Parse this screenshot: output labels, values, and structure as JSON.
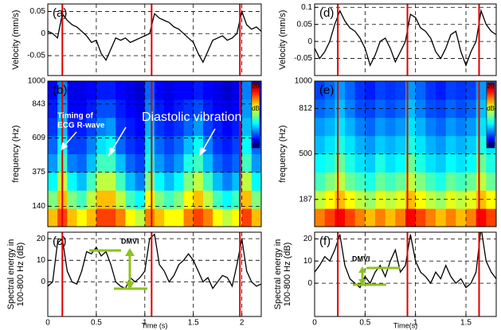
{
  "chart_data": [
    {
      "type": "line",
      "panel_label": "(a)",
      "ylabel": [
        "Velocity (mm/s)"
      ],
      "color": "#000000",
      "grid": true,
      "xlim": [
        0,
        2.2
      ],
      "xticks": [
        0,
        0.5,
        1,
        1.5,
        2
      ],
      "ylim": [
        -0.095,
        0.067
      ],
      "yticks": [
        0.05,
        0,
        -0.05
      ],
      "r_wave_x": [
        0.15,
        1.07,
        1.98
      ],
      "r_wave_color": "#e00000",
      "x": [
        0,
        0.05,
        0.1,
        0.15,
        0.2,
        0.25,
        0.3,
        0.35,
        0.4,
        0.45,
        0.5,
        0.55,
        0.6,
        0.65,
        0.7,
        0.75,
        0.8,
        0.85,
        0.9,
        0.95,
        1,
        1.05,
        1.1,
        1.15,
        1.2,
        1.25,
        1.3,
        1.35,
        1.4,
        1.45,
        1.5,
        1.55,
        1.6,
        1.65,
        1.7,
        1.75,
        1.8,
        1.85,
        1.9,
        1.95,
        2,
        2.05,
        2.1,
        2.15,
        2.2
      ],
      "values": [
        0.005,
        0.0,
        -0.01,
        0.045,
        0.03,
        0.02,
        0.015,
        0.005,
        -0.005,
        -0.02,
        -0.015,
        -0.045,
        -0.06,
        -0.035,
        -0.01,
        -0.015,
        -0.01,
        -0.02,
        -0.015,
        -0.01,
        -0.005,
        0.0,
        0.045,
        0.035,
        0.03,
        0.025,
        0.015,
        0.01,
        0.0,
        -0.01,
        -0.02,
        -0.045,
        -0.065,
        -0.04,
        -0.015,
        -0.01,
        -0.005,
        -0.015,
        -0.01,
        0.0,
        0.05,
        0.02,
        0.01,
        0.015,
        0.005
      ]
    },
    {
      "type": "heatmap",
      "panel_label": "(b)",
      "ylabel": [
        "frequency (Hz)"
      ],
      "colormap": "jet",
      "grid": true,
      "xlim": [
        0,
        2.2
      ],
      "xticks": [
        0,
        0.5,
        1,
        1.5,
        2
      ],
      "ylim": [
        0,
        1000
      ],
      "yticks": [
        140,
        375,
        609,
        843,
        1000
      ],
      "r_wave_x": [
        0.15,
        1.07,
        1.98
      ],
      "r_wave_color": "#e00000",
      "clim": [
        -60,
        20
      ],
      "colorbar": {
        "label": "dB",
        "ticks": [
          20,
          -60
        ]
      },
      "annotations": [
        "Timing of",
        "ECG R-wave",
        "Diastolic vibration"
      ],
      "x_edges": [
        0,
        0.1,
        0.2,
        0.3,
        0.4,
        0.5,
        0.6,
        0.7,
        0.8,
        0.9,
        1,
        1.1,
        1.2,
        1.3,
        1.4,
        1.5,
        1.6,
        1.7,
        1.8,
        1.9,
        2,
        2.1,
        2.2
      ],
      "y_edges": [
        0,
        125,
        250,
        375,
        500,
        625,
        750,
        875,
        1000
      ],
      "z": [
        [
          -5,
          5,
          -5,
          -10,
          -5,
          5,
          5,
          0,
          -10,
          -15,
          0,
          -5,
          -10,
          -10,
          0,
          5,
          0,
          -10,
          -15,
          -10,
          5,
          -5
        ],
        [
          -20,
          -5,
          -20,
          -25,
          -15,
          -5,
          -5,
          -15,
          -25,
          -30,
          -10,
          -20,
          -25,
          -20,
          -10,
          -5,
          -15,
          -25,
          -30,
          -25,
          -5,
          -20
        ],
        [
          -30,
          -15,
          -30,
          -35,
          -25,
          -15,
          -15,
          -25,
          -35,
          -40,
          -20,
          -30,
          -35,
          -30,
          -20,
          -15,
          -25,
          -35,
          -40,
          -35,
          -15,
          -30
        ],
        [
          -38,
          -25,
          -40,
          -42,
          -35,
          -25,
          -25,
          -35,
          -42,
          -45,
          -28,
          -38,
          -42,
          -38,
          -28,
          -25,
          -35,
          -42,
          -45,
          -42,
          -25,
          -38
        ],
        [
          -42,
          -30,
          -45,
          -45,
          -40,
          -32,
          -30,
          -42,
          -46,
          -48,
          -32,
          -42,
          -45,
          -42,
          -35,
          -30,
          -40,
          -46,
          -48,
          -45,
          -30,
          -42
        ],
        [
          -46,
          -35,
          -48,
          -48,
          -45,
          -40,
          -38,
          -46,
          -48,
          -50,
          -36,
          -46,
          -48,
          -46,
          -42,
          -38,
          -45,
          -48,
          -50,
          -48,
          -35,
          -46
        ],
        [
          -48,
          -38,
          -50,
          -50,
          -48,
          -44,
          -44,
          -48,
          -50,
          -52,
          -40,
          -48,
          -50,
          -48,
          -46,
          -44,
          -48,
          -50,
          -52,
          -50,
          -38,
          -48
        ],
        [
          -50,
          -40,
          -52,
          -52,
          -50,
          -48,
          -48,
          -50,
          -52,
          -54,
          -42,
          -50,
          -52,
          -50,
          -50,
          -48,
          -50,
          -52,
          -54,
          -52,
          -40,
          -50
        ]
      ]
    },
    {
      "type": "line",
      "panel_label": "(c)",
      "ylabel": [
        "Spectral energy in",
        "100-800 Hz (dB)"
      ],
      "xlabel": "Time (s)",
      "color": "#000000",
      "grid": true,
      "xlim": [
        0,
        2.2
      ],
      "xticks": [
        0,
        0.5,
        1,
        1.5,
        2
      ],
      "ylim": [
        -16,
        23
      ],
      "yticks": [
        0,
        10,
        20
      ],
      "r_wave_x": [
        0.15,
        1.07,
        1.98
      ],
      "r_wave_color": "#e00000",
      "annotations": [
        "DMVI"
      ],
      "x": [
        0,
        0.05,
        0.1,
        0.15,
        0.2,
        0.25,
        0.3,
        0.35,
        0.4,
        0.45,
        0.5,
        0.55,
        0.6,
        0.65,
        0.7,
        0.75,
        0.8,
        0.85,
        0.9,
        0.95,
        1,
        1.05,
        1.1,
        1.15,
        1.2,
        1.25,
        1.3,
        1.35,
        1.4,
        1.45,
        1.5,
        1.55,
        1.6,
        1.65,
        1.7,
        1.75,
        1.8,
        1.85,
        1.9,
        1.95,
        2,
        2.05,
        2.1,
        2.15,
        2.2
      ],
      "values": [
        -2,
        0,
        18,
        20,
        5,
        0,
        -1,
        5,
        14,
        13,
        16,
        12,
        14,
        8,
        0,
        -2,
        -3,
        2,
        0,
        2,
        5,
        20,
        22,
        8,
        5,
        0,
        3,
        8,
        10,
        13,
        10,
        5,
        0,
        2,
        -3,
        0,
        3,
        2,
        -2,
        8,
        20,
        5,
        0,
        -2,
        -1
      ]
    },
    {
      "type": "line",
      "panel_label": "(d)",
      "ylabel": [
        "Velocity (mm/s)"
      ],
      "color": "#000000",
      "grid": true,
      "xlim": [
        0,
        1.8
      ],
      "xticks": [
        0,
        0.5,
        1,
        1.5
      ],
      "ylim": [
        -0.1,
        0.11
      ],
      "yticks": [
        0.1,
        0.05,
        0,
        -0.05
      ],
      "r_wave_x": [
        0.23,
        0.92,
        1.63
      ],
      "r_wave_color": "#e00000",
      "x": [
        0,
        0.05,
        0.1,
        0.15,
        0.2,
        0.25,
        0.3,
        0.35,
        0.4,
        0.45,
        0.5,
        0.55,
        0.6,
        0.65,
        0.7,
        0.75,
        0.8,
        0.85,
        0.9,
        0.95,
        1,
        1.05,
        1.1,
        1.15,
        1.2,
        1.25,
        1.3,
        1.35,
        1.4,
        1.45,
        1.5,
        1.55,
        1.6,
        1.65,
        1.7,
        1.75,
        1.8
      ],
      "values": [
        -0.02,
        -0.05,
        -0.03,
        0.0,
        0.05,
        0.09,
        0.06,
        0.04,
        0.03,
        0.01,
        -0.02,
        -0.07,
        -0.04,
        0.0,
        0.01,
        -0.02,
        -0.06,
        -0.03,
        0.0,
        0.08,
        0.07,
        0.04,
        0.03,
        0.01,
        -0.03,
        -0.05,
        -0.02,
        0.02,
        0.03,
        -0.03,
        -0.07,
        -0.03,
        0.0,
        0.09,
        0.05,
        0.03,
        0.02
      ]
    },
    {
      "type": "heatmap",
      "panel_label": "(e)",
      "ylabel": [
        "frequency (Hz)"
      ],
      "colormap": "jet",
      "grid": true,
      "xlim": [
        0,
        1.8
      ],
      "xticks": [
        0,
        0.5,
        1,
        1.5
      ],
      "ylim": [
        0,
        1000
      ],
      "yticks": [
        187,
        500,
        812,
        1000
      ],
      "r_wave_x": [
        0.23,
        0.92,
        1.63
      ],
      "r_wave_color": "#e00000",
      "clim": [
        -60,
        20
      ],
      "colorbar": {
        "label": "dB",
        "ticks": [
          20,
          -60
        ]
      },
      "x_edges": [
        0,
        0.1,
        0.2,
        0.3,
        0.4,
        0.5,
        0.6,
        0.7,
        0.8,
        0.9,
        1,
        1.1,
        1.2,
        1.3,
        1.4,
        1.5,
        1.6,
        1.7,
        1.8
      ],
      "y_edges": [
        0,
        125,
        250,
        375,
        500,
        625,
        750,
        875,
        1000
      ],
      "z": [
        [
          0,
          5,
          10,
          5,
          0,
          -5,
          0,
          -5,
          0,
          10,
          5,
          0,
          -5,
          0,
          -5,
          0,
          10,
          5
        ],
        [
          -15,
          -10,
          -5,
          -10,
          -15,
          -18,
          -12,
          -15,
          -12,
          -5,
          -10,
          -15,
          -18,
          -12,
          -15,
          -12,
          -5,
          -10
        ],
        [
          -25,
          -20,
          -15,
          -22,
          -25,
          -28,
          -22,
          -25,
          -22,
          -15,
          -20,
          -25,
          -28,
          -22,
          -25,
          -22,
          -15,
          -22
        ],
        [
          -30,
          -28,
          -22,
          -28,
          -32,
          -34,
          -28,
          -32,
          -30,
          -22,
          -28,
          -32,
          -34,
          -30,
          -32,
          -30,
          -22,
          -28
        ],
        [
          -35,
          -32,
          -28,
          -32,
          -36,
          -38,
          -34,
          -36,
          -34,
          -28,
          -32,
          -36,
          -38,
          -34,
          -36,
          -34,
          -28,
          -32
        ],
        [
          -38,
          -36,
          -32,
          -36,
          -40,
          -42,
          -38,
          -40,
          -38,
          -32,
          -36,
          -40,
          -42,
          -38,
          -40,
          -38,
          -32,
          -36
        ],
        [
          -42,
          -40,
          -35,
          -40,
          -44,
          -45,
          -42,
          -44,
          -42,
          -35,
          -40,
          -44,
          -45,
          -42,
          -44,
          -42,
          -35,
          -40
        ],
        [
          -45,
          -42,
          -38,
          -42,
          -46,
          -48,
          -45,
          -46,
          -45,
          -38,
          -42,
          -46,
          -48,
          -45,
          -46,
          -45,
          -38,
          -42
        ]
      ]
    },
    {
      "type": "line",
      "panel_label": "(f)",
      "ylabel": [
        "Spectral energy in",
        "100-800 Hz (dB)"
      ],
      "xlabel": "Time(s)",
      "color": "#000000",
      "grid": true,
      "xlim": [
        0,
        1.8
      ],
      "xticks": [
        0,
        0.5,
        1,
        1.5
      ],
      "ylim": [
        -15,
        23
      ],
      "yticks": [
        0,
        10,
        20
      ],
      "r_wave_x": [
        0.23,
        0.92,
        1.63
      ],
      "r_wave_color": "#e00000",
      "annotations": [
        "DMVI"
      ],
      "x": [
        0,
        0.05,
        0.1,
        0.15,
        0.2,
        0.25,
        0.3,
        0.35,
        0.4,
        0.45,
        0.5,
        0.55,
        0.6,
        0.65,
        0.7,
        0.75,
        0.8,
        0.85,
        0.9,
        0.95,
        1,
        1.05,
        1.1,
        1.15,
        1.2,
        1.25,
        1.3,
        1.35,
        1.4,
        1.45,
        1.5,
        1.55,
        1.6,
        1.65,
        1.7,
        1.75,
        1.8
      ],
      "values": [
        5,
        8,
        12,
        10,
        15,
        22,
        8,
        2,
        0,
        -2,
        3,
        0,
        5,
        8,
        3,
        10,
        15,
        5,
        8,
        22,
        10,
        5,
        3,
        0,
        5,
        2,
        8,
        3,
        0,
        2,
        -2,
        0,
        5,
        25,
        10,
        5,
        2
      ]
    }
  ]
}
